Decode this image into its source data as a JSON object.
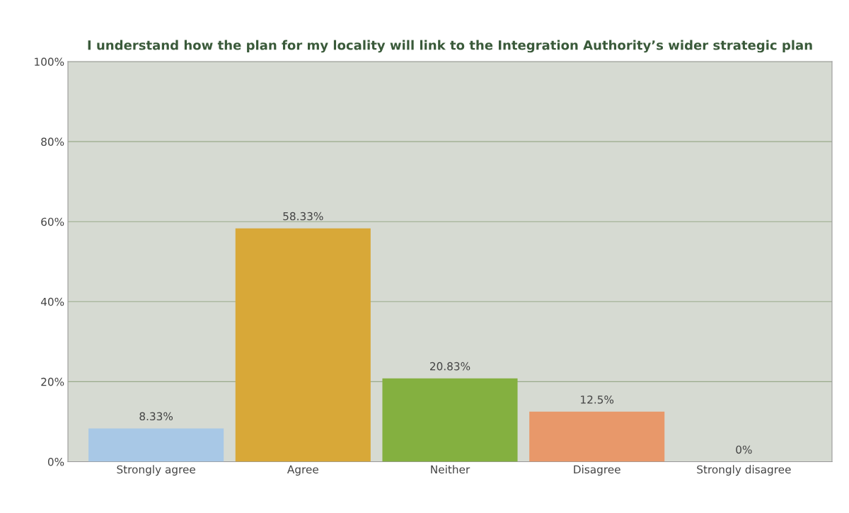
{
  "chart_data": {
    "type": "bar",
    "title": "I understand how the plan for my locality will link to the Integration Authority’s wider strategic plan",
    "categories": [
      "Strongly agree",
      "Agree",
      "Neither",
      "Disagree",
      "Strongly disagree"
    ],
    "values": [
      8.33,
      58.33,
      20.83,
      12.5,
      0
    ],
    "value_labels": [
      "8.33%",
      "58.33%",
      "20.83%",
      "12.5%",
      "0%"
    ],
    "colors": [
      "#a8c8e6",
      "#d8a838",
      "#84b040",
      "#e8986a",
      "#38a8a8"
    ],
    "ylim": [
      0,
      100
    ],
    "yticks": [
      {
        "value": 0,
        "label": "0%"
      },
      {
        "value": 20,
        "label": "20%"
      },
      {
        "value": 40,
        "label": "40%"
      },
      {
        "value": 60,
        "label": "60%"
      },
      {
        "value": 80,
        "label": "80%"
      },
      {
        "value": 100,
        "label": "100%"
      }
    ],
    "grid": "y"
  }
}
